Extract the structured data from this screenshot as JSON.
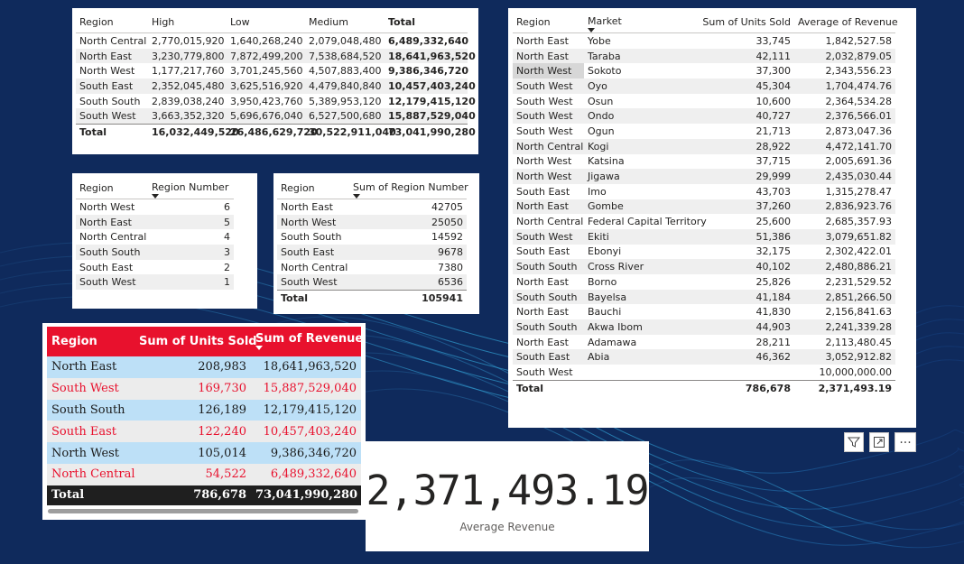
{
  "regionLevels": {
    "headers": [
      "Region",
      "High",
      "Low",
      "Medium",
      "Total"
    ],
    "rows": [
      [
        "North Central",
        "2,770,015,920",
        "1,640,268,240",
        "2,079,048,480",
        "6,489,332,640"
      ],
      [
        "North East",
        "3,230,779,800",
        "7,872,499,200",
        "7,538,684,520",
        "18,641,963,520"
      ],
      [
        "North West",
        "1,177,217,760",
        "3,701,245,560",
        "4,507,883,400",
        "9,386,346,720"
      ],
      [
        "South East",
        "2,352,045,480",
        "3,625,516,920",
        "4,479,840,840",
        "10,457,403,240"
      ],
      [
        "South South",
        "2,839,038,240",
        "3,950,423,760",
        "5,389,953,120",
        "12,179,415,120"
      ],
      [
        "South West",
        "3,663,352,320",
        "5,696,676,040",
        "6,527,500,680",
        "15,887,529,040"
      ]
    ],
    "total": [
      "Total",
      "16,032,449,520",
      "26,486,629,720",
      "30,522,911,040",
      "73,041,990,280"
    ]
  },
  "regionNumber": {
    "headers": [
      "Region",
      "Region Number"
    ],
    "rows": [
      [
        "North West",
        "6"
      ],
      [
        "North East",
        "5"
      ],
      [
        "North Central",
        "4"
      ],
      [
        "South South",
        "3"
      ],
      [
        "South East",
        "2"
      ],
      [
        "South West",
        "1"
      ]
    ]
  },
  "sumRegionNumber": {
    "headers": [
      "Region",
      "Sum of Region Number"
    ],
    "rows": [
      [
        "North East",
        "42705"
      ],
      [
        "North West",
        "25050"
      ],
      [
        "South South",
        "14592"
      ],
      [
        "South East",
        "9678"
      ],
      [
        "North Central",
        "7380"
      ],
      [
        "South West",
        "6536"
      ]
    ],
    "total": [
      "Total",
      "105941"
    ]
  },
  "unitsRevenue": {
    "headers": [
      "Region",
      "Sum of Units Sold",
      "Sum of Revenue"
    ],
    "rows": [
      [
        "North East",
        "208,983",
        "18,641,963,520"
      ],
      [
        "South West",
        "169,730",
        "15,887,529,040"
      ],
      [
        "South South",
        "126,189",
        "12,179,415,120"
      ],
      [
        "South East",
        "122,240",
        "10,457,403,240"
      ],
      [
        "North West",
        "105,014",
        "9,386,346,720"
      ],
      [
        "North Central",
        "54,522",
        "6,489,332,640"
      ]
    ],
    "total": [
      "Total",
      "786,678",
      "73,041,990,280"
    ]
  },
  "marketTable": {
    "headers": [
      "Region",
      "Market",
      "Sum of Units Sold",
      "Average of Revenue"
    ],
    "rows": [
      [
        "North East",
        "Yobe",
        "33,745",
        "1,842,527.58"
      ],
      [
        "North East",
        "Taraba",
        "42,111",
        "2,032,879.05"
      ],
      [
        "North West",
        "Sokoto",
        "37,300",
        "2,343,556.23"
      ],
      [
        "South West",
        "Oyo",
        "45,304",
        "1,704,474.76"
      ],
      [
        "South West",
        "Osun",
        "10,600",
        "2,364,534.28"
      ],
      [
        "South West",
        "Ondo",
        "40,727",
        "2,376,566.01"
      ],
      [
        "South West",
        "Ogun",
        "21,713",
        "2,873,047.36"
      ],
      [
        "North Central",
        "Kogi",
        "28,922",
        "4,472,141.70"
      ],
      [
        "North West",
        "Katsina",
        "37,715",
        "2,005,691.36"
      ],
      [
        "North West",
        "Jigawa",
        "29,999",
        "2,435,030.44"
      ],
      [
        "South East",
        "Imo",
        "43,703",
        "1,315,278.47"
      ],
      [
        "North East",
        "Gombe",
        "37,260",
        "2,836,923.76"
      ],
      [
        "North Central",
        "Federal Capital Territory",
        "25,600",
        "2,685,357.93"
      ],
      [
        "South West",
        "Ekiti",
        "51,386",
        "3,079,651.82"
      ],
      [
        "South East",
        "Ebonyi",
        "32,175",
        "2,302,422.01"
      ],
      [
        "South South",
        "Cross River",
        "40,102",
        "2,480,886.21"
      ],
      [
        "North East",
        "Borno",
        "25,826",
        "2,231,529.52"
      ],
      [
        "South South",
        "Bayelsa",
        "41,184",
        "2,851,266.50"
      ],
      [
        "North East",
        "Bauchi",
        "41,830",
        "2,156,841.63"
      ],
      [
        "South South",
        "Akwa Ibom",
        "44,903",
        "2,241,339.28"
      ],
      [
        "North East",
        "Adamawa",
        "28,211",
        "2,113,480.45"
      ],
      [
        "South East",
        "Abia",
        "46,362",
        "3,052,912.82"
      ],
      [
        "South West",
        "",
        "",
        "10,000,000.00"
      ]
    ],
    "total": [
      "Total",
      "",
      "786,678",
      "2,371,493.19"
    ]
  },
  "kpi": {
    "value": "2,371,493.19",
    "label": "Average Revenue"
  },
  "toolbar": {
    "filter_icon": "filter-icon",
    "focus_icon": "focus-mode-icon",
    "more_icon": "more-options-icon"
  },
  "colors": {
    "background": "#0f2a5c",
    "accent_red": "#e8112d",
    "row_blue": "#bde0f7"
  }
}
